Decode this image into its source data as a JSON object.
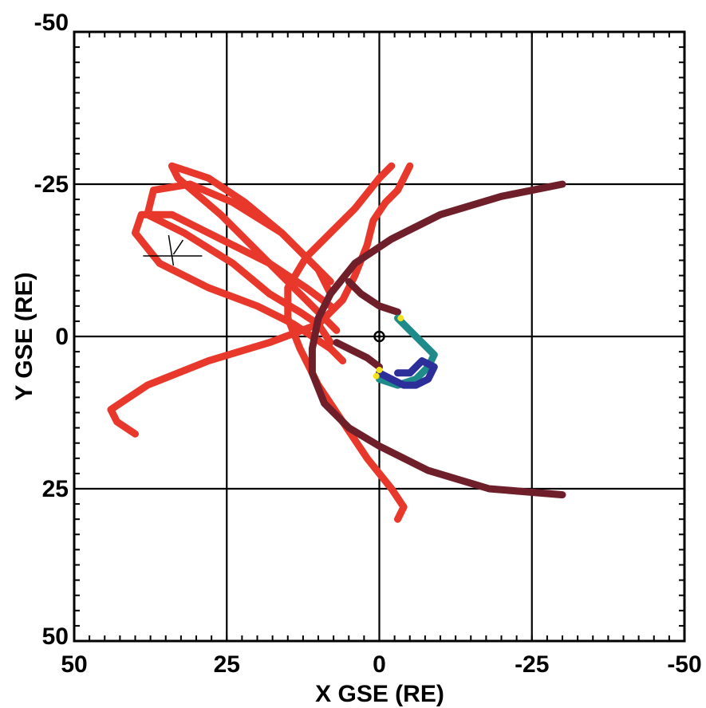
{
  "chart_data": {
    "type": "line",
    "xlabel": "X GSE (RE)",
    "ylabel": "Y GSE (RE)",
    "xlim": [
      50,
      -50
    ],
    "ylim": [
      -50,
      50
    ],
    "x_ticks": [
      50,
      25,
      0,
      -25,
      -50
    ],
    "y_ticks": [
      -50,
      -25,
      0,
      25,
      50
    ],
    "x_tick_labels": [
      "50",
      "25",
      "0",
      "-25",
      "-50"
    ],
    "y_tick_labels": [
      "-50",
      "-25",
      "0",
      "25",
      "50"
    ],
    "grid": true,
    "colors": {
      "red_orbit": "#e8372b",
      "maroon_boundary": "#6e1f2a",
      "teal_region": "#1f8a8a",
      "blue_region": "#2c2f9a",
      "yellow_marker": "#f2e21a",
      "earth": "#000000"
    },
    "series": [
      {
        "color": "#e8372b",
        "x": [
          40,
          43,
          44,
          38,
          28,
          18,
          10,
          6,
          4,
          2,
          1,
          -1,
          -3,
          -5
        ],
        "y": [
          16,
          14,
          12,
          8,
          4,
          1,
          -2,
          -6,
          -10,
          -15,
          -19,
          -22,
          -24,
          -28
        ]
      },
      {
        "color": "#e8372b",
        "x": [
          6,
          8,
          11,
          14,
          20,
          28,
          36,
          40,
          39,
          34,
          26,
          18,
          12,
          8
        ],
        "y": [
          4,
          2,
          0,
          -2,
          -5,
          -8,
          -12,
          -17,
          -20,
          -20,
          -16,
          -12,
          -8,
          -5
        ]
      },
      {
        "color": "#e8372b",
        "x": [
          8,
          10,
          13,
          18,
          24,
          32,
          38,
          37,
          31,
          24,
          16,
          10,
          8
        ],
        "y": [
          1,
          -2,
          -4,
          -7,
          -12,
          -17,
          -20,
          -24,
          -25,
          -22,
          -17,
          -11,
          -7
        ]
      },
      {
        "color": "#e8372b",
        "x": [
          7,
          10,
          14,
          19,
          26,
          33,
          34,
          28,
          22,
          16,
          11,
          8
        ],
        "y": [
          -1,
          -4,
          -8,
          -13,
          -20,
          -26,
          -28,
          -26,
          -22,
          -17,
          -12,
          -9
        ]
      },
      {
        "color": "#e8372b",
        "x": [
          -3,
          -4,
          -2,
          2,
          6,
          10,
          13,
          15,
          15,
          12,
          8,
          4,
          0,
          -2
        ],
        "y": [
          30,
          28,
          25,
          20,
          14,
          8,
          2,
          -3,
          -8,
          -13,
          -17,
          -21,
          -26,
          -28
        ]
      },
      {
        "color": "#6e1f2a",
        "x": [
          -30,
          -20,
          -10,
          -2,
          4,
          8,
          10,
          11,
          11,
          9,
          5,
          0,
          -8,
          -18,
          -30
        ],
        "y": [
          -25,
          -23,
          -20,
          -16,
          -12,
          -7,
          -3,
          2,
          6,
          11,
          15,
          18,
          22,
          25,
          26
        ]
      },
      {
        "color": "#6e1f2a",
        "x": [
          -3,
          0,
          3,
          5
        ],
        "y": [
          -4,
          -5,
          -7,
          -9
        ]
      },
      {
        "color": "#6e1f2a",
        "x": [
          0,
          2,
          4,
          7
        ],
        "y": [
          5,
          3.5,
          2.5,
          1
        ]
      },
      {
        "color": "#1f8a8a",
        "x": [
          -3,
          -5,
          -6,
          -8,
          -9,
          -8,
          -6,
          -3,
          0
        ],
        "y": [
          -3,
          -1,
          0,
          2,
          3,
          5,
          7,
          8,
          7
        ]
      },
      {
        "color": "#2c2f9a",
        "x": [
          0,
          -2,
          -4,
          -6,
          -8,
          -9,
          -7,
          -5,
          -3
        ],
        "y": [
          6,
          7,
          8,
          8,
          7,
          5,
          4,
          6,
          6
        ]
      },
      {
        "color": "#f2e21a",
        "x": [
          -3.5,
          0,
          0.5
        ],
        "y": [
          -3,
          5.5,
          6.5
        ]
      }
    ],
    "annotations": [
      {
        "type": "earth",
        "x": 0,
        "y": 0
      },
      {
        "type": "cross",
        "x": 34,
        "y": -14
      }
    ]
  }
}
